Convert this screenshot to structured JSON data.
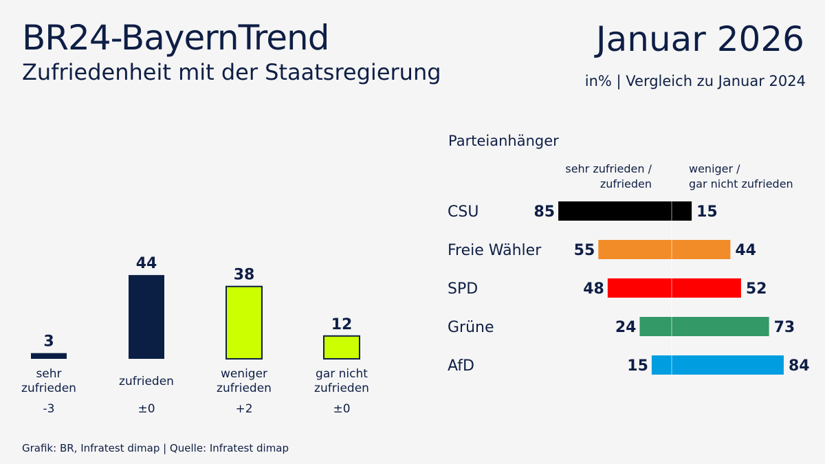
{
  "header": {
    "title": "BR24-BayernTrend",
    "subtitle": "Zufriedenheit mit der Staatsregierung",
    "date": "Januar 2026",
    "unit_note": "in% | Vergleich zu Januar 2024"
  },
  "footer": "Grafik: BR, Infratest dimap | Quelle: Infratest dimap",
  "chart_data": [
    {
      "type": "bar",
      "categories": [
        [
          "sehr",
          "zufrieden"
        ],
        [
          "zufrieden"
        ],
        [
          "weniger",
          "zufrieden"
        ],
        [
          "gar nicht",
          "zufrieden"
        ]
      ],
      "values": [
        3,
        44,
        38,
        12
      ],
      "changes": [
        "-3",
        "±0",
        "+2",
        "±0"
      ],
      "colors": [
        "#0b1f45",
        "#0b1f45",
        "#ccff00",
        "#ccff00"
      ],
      "ylim": [
        0,
        50
      ]
    },
    {
      "type": "bar",
      "orientation": "diverging-horizontal",
      "title": "Parteianhänger",
      "left_header": [
        "sehr zufrieden /",
        "zufrieden"
      ],
      "right_header": [
        "weniger /",
        "gar nicht zufrieden"
      ],
      "categories": [
        "CSU",
        "Freie Wähler",
        "SPD",
        "Grüne",
        "AfD"
      ],
      "series": [
        {
          "name": "sehr zufrieden / zufrieden",
          "values": [
            85,
            55,
            48,
            24,
            15
          ]
        },
        {
          "name": "weniger / gar nicht zufrieden",
          "values": [
            15,
            44,
            52,
            73,
            84
          ]
        }
      ],
      "colors": [
        "#000000",
        "#f28c28",
        "#ff0000",
        "#339966",
        "#009ee0"
      ]
    }
  ]
}
